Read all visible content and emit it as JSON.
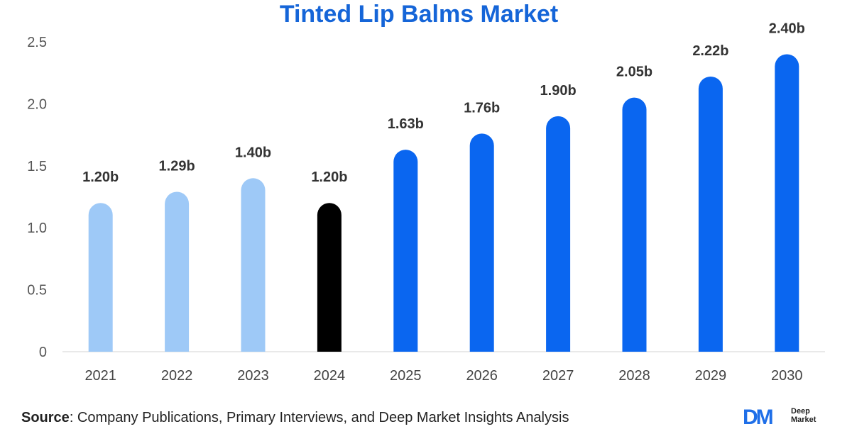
{
  "title": "Tinted Lip Balms Market",
  "chart_data": {
    "type": "bar",
    "title": "Tinted Lip Balms Market",
    "categories": [
      "2021",
      "2022",
      "2023",
      "2024",
      "2025",
      "2026",
      "2027",
      "2028",
      "2029",
      "2030"
    ],
    "values": [
      1.2,
      1.29,
      1.4,
      1.2,
      1.63,
      1.76,
      1.9,
      2.05,
      2.22,
      2.4
    ],
    "data_labels": [
      "1.20b",
      "1.29b",
      "1.40b",
      "1.20b",
      "1.63b",
      "1.76b",
      "1.90b",
      "2.05b",
      "2.22b",
      "2.40b"
    ],
    "bar_colors": [
      "#9ec9f7",
      "#9ec9f7",
      "#9ec9f7",
      "#000000",
      "#0a66f0",
      "#0a66f0",
      "#0a66f0",
      "#0a66f0",
      "#0a66f0",
      "#0a66f0"
    ],
    "yticks": [
      "0",
      "0.5",
      "1.0",
      "1.5",
      "2.0",
      "2.5"
    ],
    "ylim": [
      0,
      2.5
    ],
    "grid": false,
    "legend": "none"
  },
  "source": {
    "label": "Source",
    "text": ": Company Publications, Primary Interviews, and Deep Market Insights Analysis"
  },
  "logo": {
    "mark": "DM",
    "line1": "Deep",
    "line2": "Market",
    "color": "#1f6fe8"
  }
}
